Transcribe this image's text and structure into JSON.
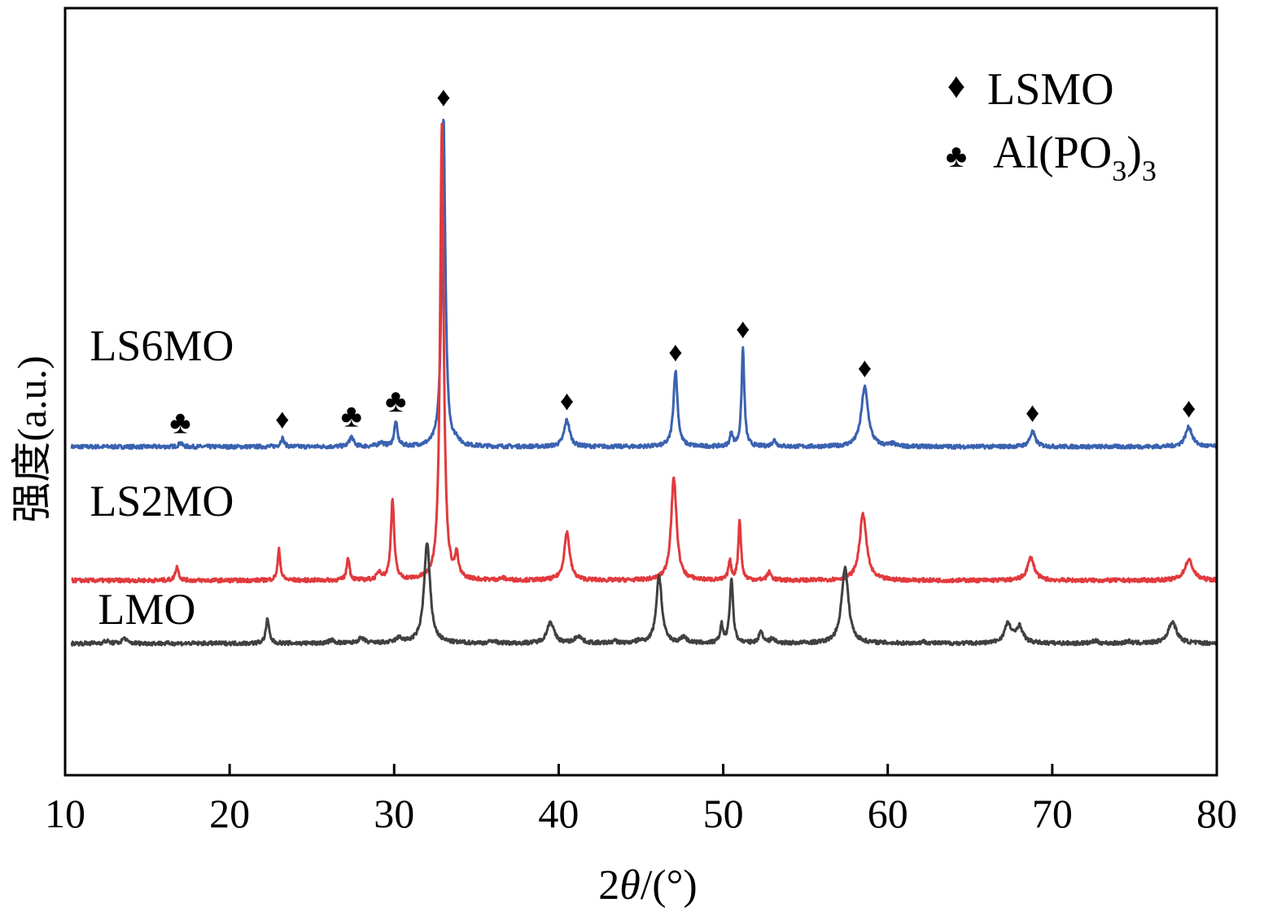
{
  "chart_data": {
    "type": "line",
    "x_label_prefix": "2",
    "x_label_theta": "θ",
    "x_label_suffix": "/(°)",
    "y_label": "强度(a.u.)",
    "xlim": [
      10,
      80
    ],
    "x_ticks": [
      10,
      20,
      30,
      40,
      50,
      60,
      70,
      80
    ],
    "y_ticks_shown": false,
    "grid": false,
    "legend_position": "top-right",
    "legend": [
      {
        "symbol": "♦",
        "label": "LSMO"
      },
      {
        "symbol": "♣",
        "label_main": "Al(PO",
        "label_sub1": "3",
        "label_paren": ")",
        "label_sub2": "3"
      }
    ],
    "series": [
      {
        "name": "LS6MO",
        "color": "#3a62b0",
        "baseline": 8.35,
        "peaks": [
          [
            17.0,
            0.1,
            0.12
          ],
          [
            23.2,
            0.22,
            0.12
          ],
          [
            27.4,
            0.25,
            0.15
          ],
          [
            29.2,
            0.1,
            0.2
          ],
          [
            30.1,
            0.62,
            0.12
          ],
          [
            33.0,
            8.4,
            0.13
          ],
          [
            33.8,
            0.12,
            0.15
          ],
          [
            40.5,
            0.68,
            0.2
          ],
          [
            47.1,
            1.92,
            0.15
          ],
          [
            50.5,
            0.35,
            0.1
          ],
          [
            51.2,
            2.5,
            0.1
          ],
          [
            53.1,
            0.16,
            0.15
          ],
          [
            58.6,
            1.52,
            0.25
          ],
          [
            60.3,
            0.06,
            0.2
          ],
          [
            68.8,
            0.38,
            0.2
          ],
          [
            78.3,
            0.5,
            0.25
          ]
        ],
        "markers": [
          {
            "x": 17.0,
            "symbol": "♣"
          },
          {
            "x": 23.2,
            "symbol": "♦"
          },
          {
            "x": 27.4,
            "symbol": "♣"
          },
          {
            "x": 30.1,
            "symbol": "♣"
          },
          {
            "x": 33.0,
            "symbol": "♦"
          },
          {
            "x": 40.5,
            "symbol": "♦"
          },
          {
            "x": 47.1,
            "symbol": "♦"
          },
          {
            "x": 51.2,
            "symbol": "♦"
          },
          {
            "x": 58.6,
            "symbol": "♦"
          },
          {
            "x": 68.8,
            "symbol": "♦"
          },
          {
            "x": 78.3,
            "symbol": "♦"
          }
        ],
        "label_x": 11.5,
        "label_dy": 2.2
      },
      {
        "name": "LS2MO",
        "color": "#e13a3d",
        "baseline": 4.95,
        "peaks": [
          [
            16.8,
            0.35,
            0.12
          ],
          [
            23.0,
            0.78,
            0.1
          ],
          [
            27.2,
            0.6,
            0.1
          ],
          [
            29.1,
            0.2,
            0.15
          ],
          [
            29.9,
            2.05,
            0.12
          ],
          [
            32.9,
            11.6,
            0.13
          ],
          [
            33.8,
            0.55,
            0.12
          ],
          [
            36.6,
            0.05,
            0.2
          ],
          [
            40.5,
            1.22,
            0.2
          ],
          [
            47.0,
            2.6,
            0.2
          ],
          [
            50.4,
            0.48,
            0.1
          ],
          [
            51.0,
            1.52,
            0.1
          ],
          [
            52.8,
            0.2,
            0.15
          ],
          [
            58.5,
            1.7,
            0.25
          ],
          [
            68.7,
            0.58,
            0.25
          ],
          [
            78.3,
            0.52,
            0.3
          ]
        ],
        "label_x": 11.5,
        "label_dy": 1.65
      },
      {
        "name": "LMO",
        "color": "#404040",
        "baseline": 3.35,
        "peaks": [
          [
            12.5,
            0.06,
            0.2
          ],
          [
            13.6,
            0.14,
            0.15
          ],
          [
            22.3,
            0.6,
            0.12
          ],
          [
            26.2,
            0.08,
            0.2
          ],
          [
            28.0,
            0.12,
            0.25
          ],
          [
            30.3,
            0.12,
            0.25
          ],
          [
            32.0,
            2.55,
            0.22
          ],
          [
            36.0,
            0.06,
            0.2
          ],
          [
            39.5,
            0.55,
            0.25
          ],
          [
            41.2,
            0.18,
            0.25
          ],
          [
            43.4,
            0.05,
            0.2
          ],
          [
            44.9,
            0.05,
            0.2
          ],
          [
            46.1,
            1.72,
            0.2
          ],
          [
            47.6,
            0.15,
            0.2
          ],
          [
            49.9,
            0.45,
            0.1
          ],
          [
            50.5,
            1.65,
            0.12
          ],
          [
            52.3,
            0.3,
            0.15
          ],
          [
            53.0,
            0.12,
            0.15
          ],
          [
            57.4,
            1.92,
            0.25
          ],
          [
            62.2,
            0.04,
            0.2
          ],
          [
            67.3,
            0.48,
            0.25
          ],
          [
            68.0,
            0.42,
            0.25
          ],
          [
            72.6,
            0.06,
            0.2
          ],
          [
            74.6,
            0.05,
            0.2
          ],
          [
            77.3,
            0.55,
            0.3
          ]
        ],
        "label_x": 12.0,
        "label_dy": 0.5
      }
    ]
  }
}
